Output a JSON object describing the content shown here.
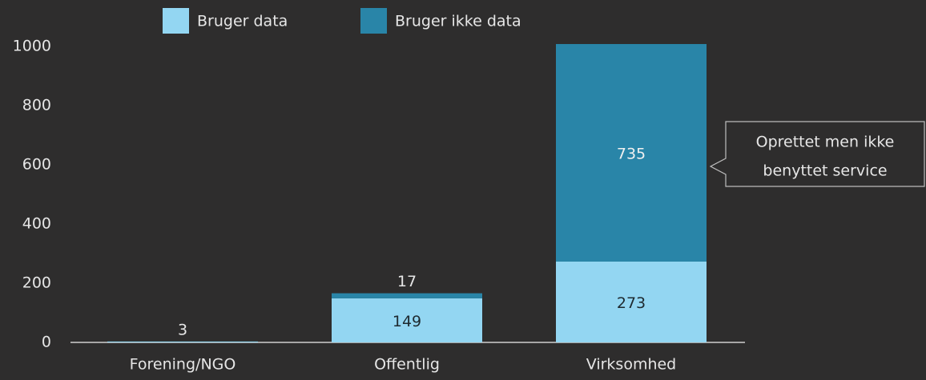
{
  "chart_data": {
    "type": "stacked_bar",
    "categories": [
      "Forening/NGO",
      "Offentlig",
      "Virksomhed"
    ],
    "series": [
      {
        "name": "Bruger data",
        "color": "#93d6f2",
        "values": [
          3,
          149,
          273
        ]
      },
      {
        "name": "Bruger ikke data",
        "color": "#2985a8",
        "values": [
          null,
          17,
          735
        ]
      }
    ],
    "ylim": [
      0,
      1000
    ],
    "yticks": [
      0,
      200,
      400,
      600,
      800,
      1000
    ],
    "grid": false,
    "annotation": [
      "Oprettet men ikke",
      "benyttet service"
    ]
  }
}
